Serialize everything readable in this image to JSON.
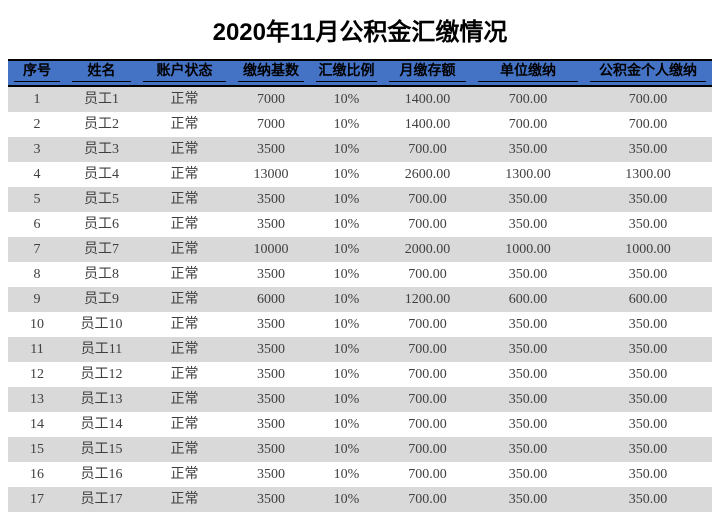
{
  "page": {
    "title": "2020年11月公积金汇缴情况"
  },
  "table": {
    "columns": [
      "序号",
      "姓名",
      "账户状态",
      "缴纳基数",
      "汇缴比例",
      "月缴存额",
      "单位缴纳",
      "公积金个人缴纳"
    ],
    "rows": [
      [
        "1",
        "员工1",
        "正常",
        "7000",
        "10%",
        "1400.00",
        "700.00",
        "700.00"
      ],
      [
        "2",
        "员工2",
        "正常",
        "7000",
        "10%",
        "1400.00",
        "700.00",
        "700.00"
      ],
      [
        "3",
        "员工3",
        "正常",
        "3500",
        "10%",
        "700.00",
        "350.00",
        "350.00"
      ],
      [
        "4",
        "员工4",
        "正常",
        "13000",
        "10%",
        "2600.00",
        "1300.00",
        "1300.00"
      ],
      [
        "5",
        "员工5",
        "正常",
        "3500",
        "10%",
        "700.00",
        "350.00",
        "350.00"
      ],
      [
        "6",
        "员工6",
        "正常",
        "3500",
        "10%",
        "700.00",
        "350.00",
        "350.00"
      ],
      [
        "7",
        "员工7",
        "正常",
        "10000",
        "10%",
        "2000.00",
        "1000.00",
        "1000.00"
      ],
      [
        "8",
        "员工8",
        "正常",
        "3500",
        "10%",
        "700.00",
        "350.00",
        "350.00"
      ],
      [
        "9",
        "员工9",
        "正常",
        "6000",
        "10%",
        "1200.00",
        "600.00",
        "600.00"
      ],
      [
        "10",
        "员工10",
        "正常",
        "3500",
        "10%",
        "700.00",
        "350.00",
        "350.00"
      ],
      [
        "11",
        "员工11",
        "正常",
        "3500",
        "10%",
        "700.00",
        "350.00",
        "350.00"
      ],
      [
        "12",
        "员工12",
        "正常",
        "3500",
        "10%",
        "700.00",
        "350.00",
        "350.00"
      ],
      [
        "13",
        "员工13",
        "正常",
        "3500",
        "10%",
        "700.00",
        "350.00",
        "350.00"
      ],
      [
        "14",
        "员工14",
        "正常",
        "3500",
        "10%",
        "700.00",
        "350.00",
        "350.00"
      ],
      [
        "15",
        "员工15",
        "正常",
        "3500",
        "10%",
        "700.00",
        "350.00",
        "350.00"
      ],
      [
        "16",
        "员工16",
        "正常",
        "3500",
        "10%",
        "700.00",
        "350.00",
        "350.00"
      ],
      [
        "17",
        "员工17",
        "正常",
        "3500",
        "10%",
        "700.00",
        "350.00",
        "350.00"
      ]
    ],
    "colors": {
      "header_bg": "#4472C4",
      "header_text": "#000000",
      "cell_text": "#3F3F3F",
      "row_alt_bg": "#D9D9D9",
      "border": "#000000"
    }
  }
}
